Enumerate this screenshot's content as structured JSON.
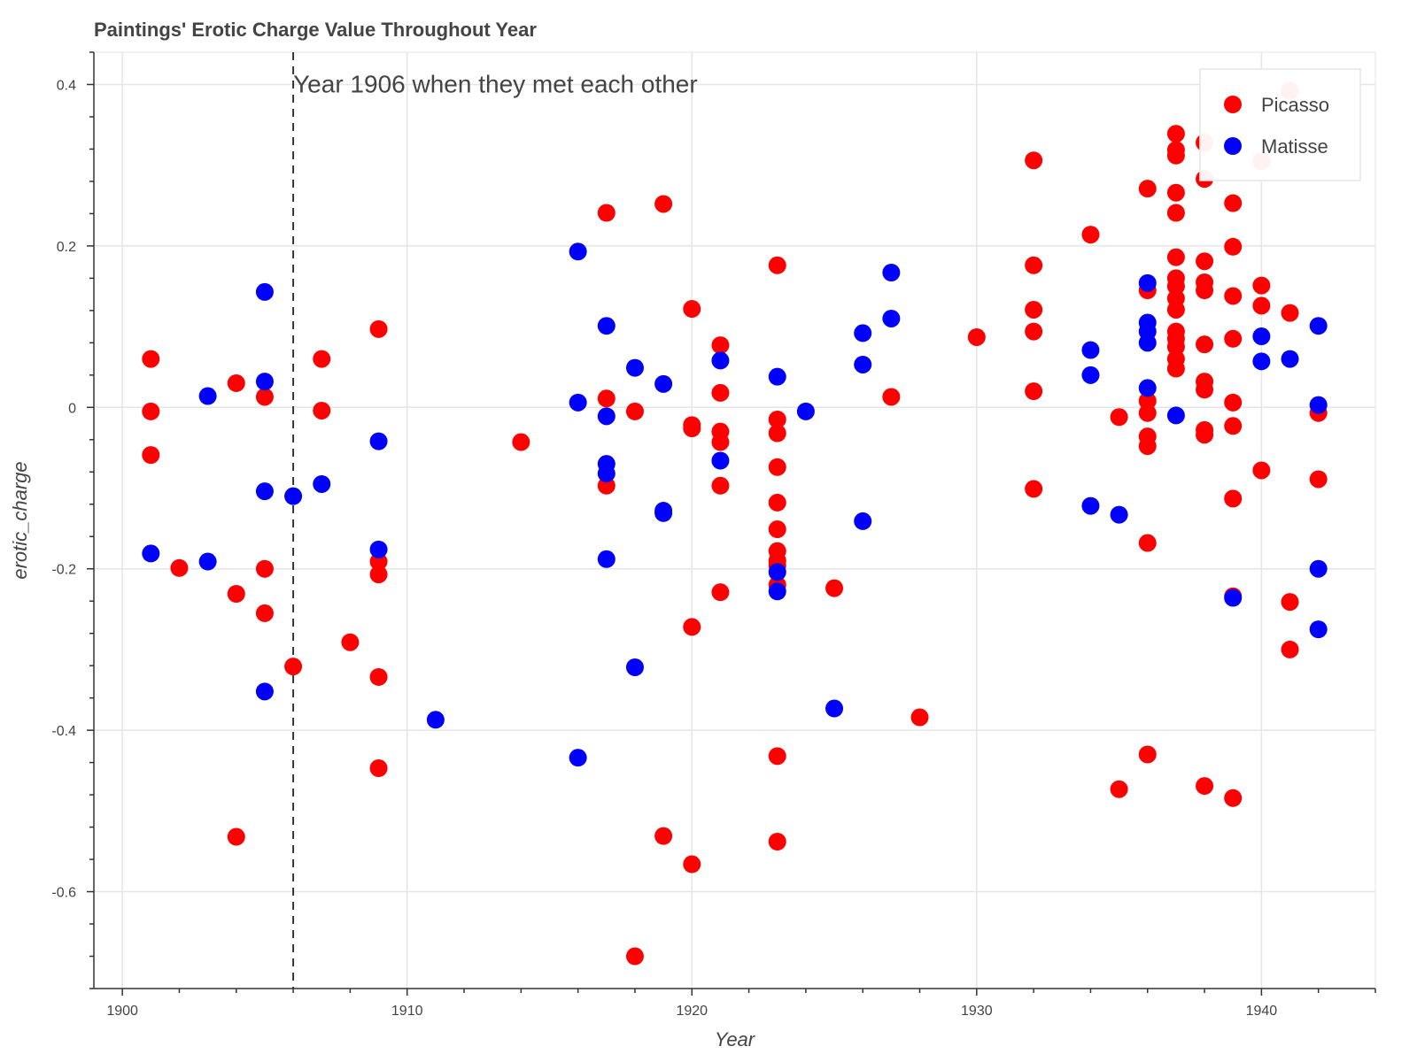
{
  "chart_data": {
    "type": "scatter",
    "title": "Paintings' Erotic Charge Value Throughout Year",
    "xlabel": "Year",
    "ylabel": "erotic_charge",
    "xlim": [
      1899,
      1944
    ],
    "ylim": [
      -0.72,
      0.44
    ],
    "x_ticks": [
      1900,
      1910,
      1920,
      1930,
      1940
    ],
    "y_ticks": [
      0.4,
      0.2,
      0,
      -0.2,
      -0.4,
      -0.6
    ],
    "y_tick_labels": [
      "0.4",
      "0.2",
      "0",
      "-0.2",
      "-0.4",
      "-0.6"
    ],
    "grid": true,
    "legend_position": "top-right",
    "annotation": {
      "text": "Year 1906 when they met each other",
      "x": 1906
    },
    "series": [
      {
        "name": "Picasso",
        "color": "#ff0000",
        "points": [
          [
            1901,
            0.06
          ],
          [
            1901,
            -0.005
          ],
          [
            1901,
            -0.059
          ],
          [
            1902,
            -0.199
          ],
          [
            1904,
            0.03
          ],
          [
            1904,
            -0.231
          ],
          [
            1904,
            -0.532
          ],
          [
            1905,
            0.013
          ],
          [
            1905,
            -0.2
          ],
          [
            1905,
            -0.255
          ],
          [
            1906,
            -0.321
          ],
          [
            1907,
            0.06
          ],
          [
            1907,
            -0.004
          ],
          [
            1908,
            -0.291
          ],
          [
            1909,
            0.097
          ],
          [
            1909,
            -0.191
          ],
          [
            1909,
            -0.207
          ],
          [
            1909,
            -0.334
          ],
          [
            1909,
            -0.447
          ],
          [
            1914,
            -0.043
          ],
          [
            1917,
            0.241
          ],
          [
            1917,
            0.011
          ],
          [
            1917,
            -0.097
          ],
          [
            1918,
            -0.005
          ],
          [
            1918,
            -0.68
          ],
          [
            1919,
            0.252
          ],
          [
            1919,
            -0.531
          ],
          [
            1920,
            0.122
          ],
          [
            1920,
            -0.022
          ],
          [
            1920,
            -0.026
          ],
          [
            1920,
            -0.272
          ],
          [
            1920,
            -0.566
          ],
          [
            1921,
            0.077
          ],
          [
            1921,
            0.018
          ],
          [
            1921,
            -0.03
          ],
          [
            1921,
            -0.043
          ],
          [
            1921,
            -0.097
          ],
          [
            1921,
            -0.229
          ],
          [
            1923,
            0.176
          ],
          [
            1923,
            -0.015
          ],
          [
            1923,
            -0.032
          ],
          [
            1923,
            -0.074
          ],
          [
            1923,
            -0.118
          ],
          [
            1923,
            -0.151
          ],
          [
            1923,
            -0.178
          ],
          [
            1923,
            -0.19
          ],
          [
            1923,
            -0.196
          ],
          [
            1923,
            -0.22
          ],
          [
            1923,
            -0.432
          ],
          [
            1923,
            -0.538
          ],
          [
            1925,
            -0.224
          ],
          [
            1927,
            0.013
          ],
          [
            1928,
            -0.384
          ],
          [
            1930,
            0.087
          ],
          [
            1932,
            0.306
          ],
          [
            1932,
            0.176
          ],
          [
            1932,
            0.121
          ],
          [
            1932,
            0.094
          ],
          [
            1932,
            0.02
          ],
          [
            1932,
            -0.101
          ],
          [
            1934,
            0.214
          ],
          [
            1935,
            -0.012
          ],
          [
            1935,
            -0.473
          ],
          [
            1936,
            0.271
          ],
          [
            1936,
            0.145
          ],
          [
            1936,
            0.008
          ],
          [
            1936,
            -0.007
          ],
          [
            1936,
            -0.036
          ],
          [
            1936,
            -0.048
          ],
          [
            1936,
            -0.168
          ],
          [
            1936,
            -0.43
          ],
          [
            1937,
            0.339
          ],
          [
            1937,
            0.319
          ],
          [
            1937,
            0.312
          ],
          [
            1937,
            0.266
          ],
          [
            1937,
            0.241
          ],
          [
            1937,
            0.186
          ],
          [
            1937,
            0.16
          ],
          [
            1937,
            0.15
          ],
          [
            1937,
            0.135
          ],
          [
            1937,
            0.121
          ],
          [
            1937,
            0.094
          ],
          [
            1937,
            0.085
          ],
          [
            1937,
            0.075
          ],
          [
            1937,
            0.06
          ],
          [
            1937,
            0.048
          ],
          [
            1938,
            0.328
          ],
          [
            1938,
            0.283
          ],
          [
            1938,
            0.181
          ],
          [
            1938,
            0.155
          ],
          [
            1938,
            0.145
          ],
          [
            1938,
            0.078
          ],
          [
            1938,
            0.032
          ],
          [
            1938,
            0.022
          ],
          [
            1938,
            -0.028
          ],
          [
            1938,
            -0.034
          ],
          [
            1938,
            -0.469
          ],
          [
            1939,
            0.253
          ],
          [
            1939,
            0.199
          ],
          [
            1939,
            0.138
          ],
          [
            1939,
            0.085
          ],
          [
            1939,
            0.006
          ],
          [
            1939,
            -0.023
          ],
          [
            1939,
            -0.113
          ],
          [
            1939,
            -0.234
          ],
          [
            1939,
            -0.484
          ],
          [
            1940,
            0.305
          ],
          [
            1940,
            0.151
          ],
          [
            1940,
            0.126
          ],
          [
            1940,
            -0.078
          ],
          [
            1941,
            0.392
          ],
          [
            1941,
            0.117
          ],
          [
            1941,
            -0.241
          ],
          [
            1941,
            -0.3
          ],
          [
            1942,
            -0.007
          ],
          [
            1942,
            -0.089
          ]
        ]
      },
      {
        "name": "Matisse",
        "color": "#0000ff",
        "points": [
          [
            1901,
            -0.181
          ],
          [
            1903,
            0.014
          ],
          [
            1903,
            -0.191
          ],
          [
            1905,
            0.143
          ],
          [
            1905,
            0.032
          ],
          [
            1905,
            -0.104
          ],
          [
            1905,
            -0.352
          ],
          [
            1906,
            -0.11
          ],
          [
            1907,
            -0.095
          ],
          [
            1909,
            -0.042
          ],
          [
            1909,
            -0.176
          ],
          [
            1911,
            -0.387
          ],
          [
            1916,
            0.193
          ],
          [
            1916,
            0.006
          ],
          [
            1916,
            -0.434
          ],
          [
            1917,
            0.101
          ],
          [
            1917,
            -0.011
          ],
          [
            1917,
            -0.07
          ],
          [
            1917,
            -0.082
          ],
          [
            1917,
            -0.188
          ],
          [
            1918,
            0.049
          ],
          [
            1918,
            -0.322
          ],
          [
            1919,
            0.029
          ],
          [
            1919,
            -0.128
          ],
          [
            1919,
            -0.131
          ],
          [
            1921,
            0.058
          ],
          [
            1921,
            -0.066
          ],
          [
            1923,
            0.038
          ],
          [
            1923,
            -0.204
          ],
          [
            1923,
            -0.228
          ],
          [
            1924,
            -0.005
          ],
          [
            1925,
            -0.373
          ],
          [
            1926,
            0.092
          ],
          [
            1926,
            0.053
          ],
          [
            1926,
            -0.141
          ],
          [
            1927,
            0.167
          ],
          [
            1927,
            0.11
          ],
          [
            1934,
            0.071
          ],
          [
            1934,
            0.04
          ],
          [
            1934,
            -0.122
          ],
          [
            1935,
            -0.133
          ],
          [
            1936,
            0.154
          ],
          [
            1936,
            0.105
          ],
          [
            1936,
            0.094
          ],
          [
            1936,
            0.08
          ],
          [
            1936,
            0.024
          ],
          [
            1937,
            -0.01
          ],
          [
            1939,
            -0.236
          ],
          [
            1940,
            0.088
          ],
          [
            1940,
            0.057
          ],
          [
            1941,
            0.06
          ],
          [
            1942,
            0.101
          ],
          [
            1942,
            0.003
          ],
          [
            1942,
            -0.2
          ],
          [
            1942,
            -0.275
          ]
        ]
      }
    ]
  }
}
